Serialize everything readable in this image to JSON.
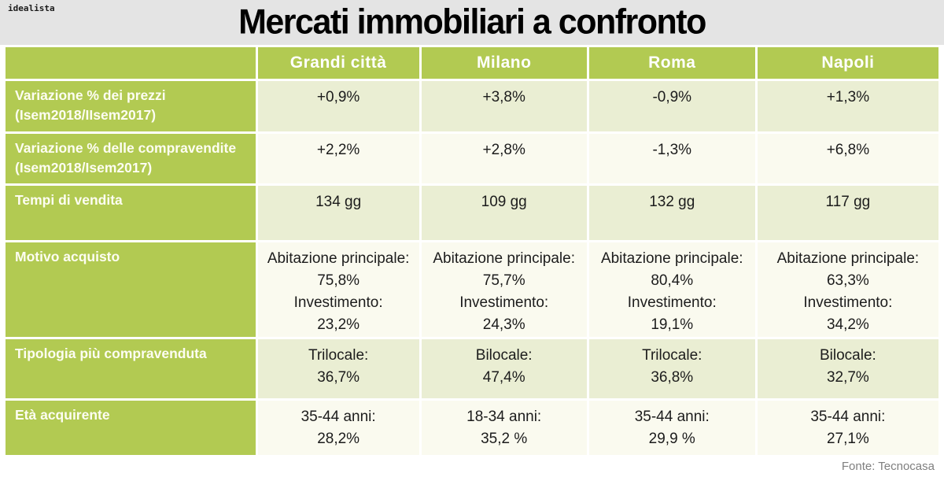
{
  "branding": {
    "logo": "idealista"
  },
  "colors": {
    "accent_green": "#b2ca52",
    "row_shade_dark": "#eaeed3",
    "row_shade_light": "#fafaef",
    "top_band_gray": "#e4e4e4",
    "value_text": "#1c1c1c",
    "footer_text": "#7f7f7f"
  },
  "footer": {
    "source": "Fonte: Tecnocasa"
  },
  "chart_data": {
    "type": "table",
    "title": "Mercati immobiliari a confronto",
    "columns": [
      "Grandi città",
      "Milano",
      "Roma",
      "Napoli"
    ],
    "rows": [
      {
        "label_lines": [
          "Variazione % dei prezzi",
          "(Isem2018/IIsem2017)"
        ],
        "cells": [
          [
            "+0,9%"
          ],
          [
            "+3,8%"
          ],
          [
            "-0,9%"
          ],
          [
            "+1,3%"
          ]
        ]
      },
      {
        "label_lines": [
          "Variazione % delle compravendite",
          "(Isem2018/Isem2017)"
        ],
        "cells": [
          [
            "+2,2%"
          ],
          [
            "+2,8%"
          ],
          [
            "-1,3%"
          ],
          [
            "+6,8%"
          ]
        ]
      },
      {
        "label_lines": [
          "Tempi di vendita"
        ],
        "cells": [
          [
            "134 gg"
          ],
          [
            "109 gg"
          ],
          [
            "132 gg"
          ],
          [
            "117 gg"
          ]
        ]
      },
      {
        "label_lines": [
          "Motivo acquisto"
        ],
        "cells": [
          [
            "Abitazione principale:",
            "75,8%",
            "Investimento:",
            "23,2%"
          ],
          [
            "Abitazione principale:",
            "75,7%",
            "Investimento:",
            "24,3%"
          ],
          [
            "Abitazione principale:",
            "80,4%",
            "Investimento:",
            "19,1%"
          ],
          [
            "Abitazione principale:",
            "63,3%",
            "Investimento:",
            "34,2%"
          ]
        ]
      },
      {
        "label_lines": [
          "Tipologia più compravenduta"
        ],
        "cells": [
          [
            "Trilocale:",
            "36,7%"
          ],
          [
            "Bilocale:",
            "47,4%"
          ],
          [
            "Trilocale:",
            "36,8%"
          ],
          [
            "Bilocale:",
            "32,7%"
          ]
        ]
      },
      {
        "label_lines": [
          "Età acquirente"
        ],
        "cells": [
          [
            "35-44 anni:",
            "28,2%"
          ],
          [
            "18-34 anni:",
            "35,2 %"
          ],
          [
            "35-44 anni:",
            "29,9 %"
          ],
          [
            "35-44 anni:",
            "27,1%"
          ]
        ]
      }
    ],
    "source_note": "Fonte: Tecnocasa"
  }
}
